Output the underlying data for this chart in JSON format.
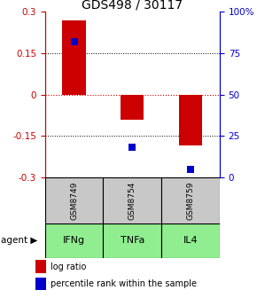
{
  "title": "GDS498 / 30117",
  "samples": [
    "GSM8749",
    "GSM8754",
    "GSM8759"
  ],
  "agents": [
    "IFNg",
    "TNFa",
    "IL4"
  ],
  "log_ratios": [
    0.27,
    -0.09,
    -0.185
  ],
  "percentiles": [
    0.82,
    0.18,
    0.05
  ],
  "ylim_left": [
    -0.3,
    0.3
  ],
  "ylim_right": [
    0.0,
    1.0
  ],
  "yticks_left": [
    -0.3,
    -0.15,
    0.0,
    0.15,
    0.3
  ],
  "ytick_labels_left": [
    "-0.3",
    "-0.15",
    "0",
    "0.15",
    "0.3"
  ],
  "yticks_right": [
    0.0,
    0.25,
    0.5,
    0.75,
    1.0
  ],
  "ytick_labels_right": [
    "0",
    "25",
    "50",
    "75",
    "100%"
  ],
  "bar_color": "#cc0000",
  "dot_color": "#0000cc",
  "bar_width": 0.4,
  "dot_size": 35,
  "sample_box_color": "#c8c8c8",
  "agent_box_color": "#90ee90",
  "zero_line_color": "#cc0000",
  "title_fontsize": 10,
  "tick_fontsize": 7.5,
  "legend_fontsize": 7,
  "sample_fontsize": 6.5,
  "agent_fontsize": 8
}
